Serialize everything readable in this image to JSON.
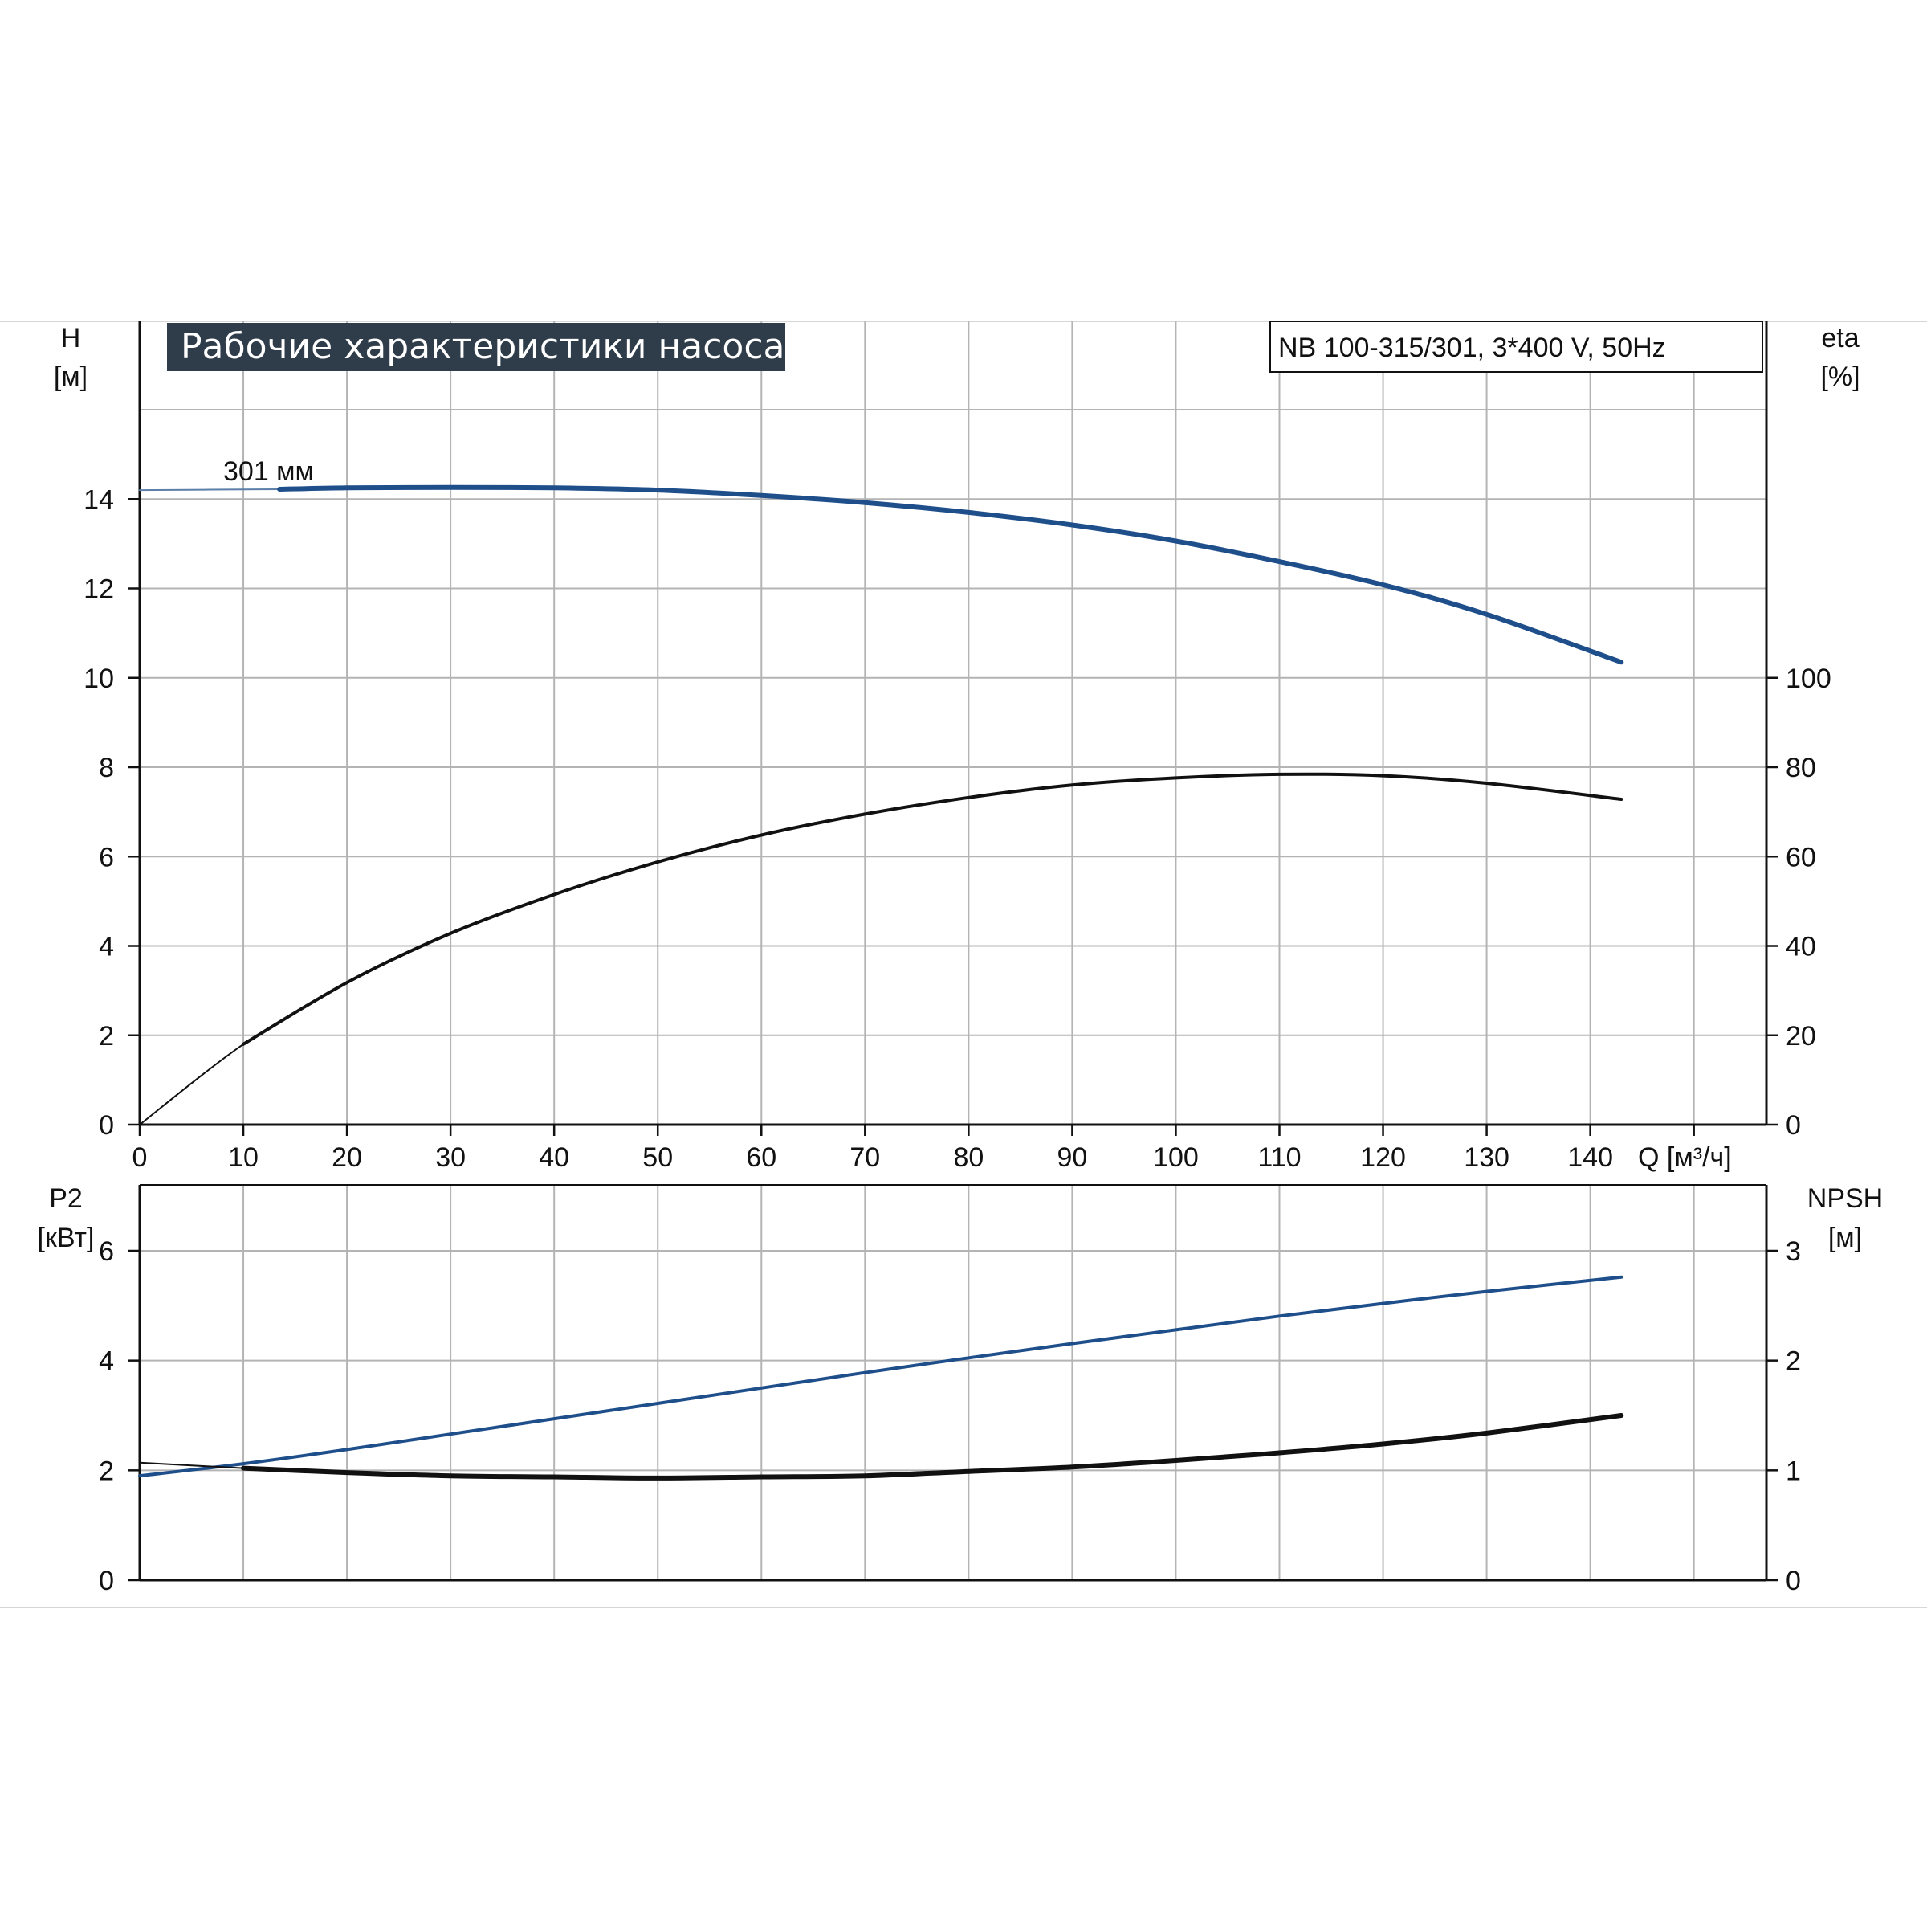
{
  "chart_data": [
    {
      "type": "line",
      "title": "Рабочие характеристики насоса",
      "model_label": "NB 100-315/301, 3*400 V, 50Hz",
      "curve_label": "301 мм",
      "xlabel": "Q [м³/ч]",
      "ylabel_left": [
        "H",
        "[м]"
      ],
      "ylabel_right": [
        "eta",
        "[%]"
      ],
      "xlim": [
        0,
        157
      ],
      "ylim_left": [
        0,
        16
      ],
      "ylim_right": [
        0,
        100
      ],
      "grid": true,
      "x_ticks": [
        "0",
        "10",
        "20",
        "30",
        "40",
        "50",
        "60",
        "70",
        "80",
        "90",
        "100",
        "110",
        "120",
        "130",
        "140"
      ],
      "y_ticks_left": [
        "0",
        "2",
        "4",
        "6",
        "8",
        "10",
        "12",
        "14"
      ],
      "y_ticks_right": [
        "0",
        "20",
        "40",
        "60",
        "80",
        "100"
      ],
      "series": [
        {
          "axis": "left",
          "color": "#1f4f8b",
          "x": [
            0,
            13.5,
            20,
            30,
            40,
            50,
            60,
            70,
            80,
            90,
            100,
            110,
            120,
            130,
            143
          ],
          "values": [
            14.2,
            14.22,
            14.25,
            14.26,
            14.25,
            14.2,
            14.08,
            13.92,
            13.7,
            13.42,
            13.06,
            12.6,
            12.08,
            11.42,
            10.35
          ]
        },
        {
          "axis": "right",
          "color": "#111111",
          "x": [
            0,
            10,
            20,
            30,
            40,
            50,
            60,
            70,
            80,
            90,
            100,
            110,
            120,
            130,
            143
          ],
          "values": [
            0,
            18,
            31.8,
            42.8,
            51.5,
            58.8,
            64.8,
            69.5,
            73.2,
            76,
            77.6,
            78.4,
            78.1,
            76.4,
            72.8
          ]
        }
      ]
    },
    {
      "type": "line",
      "xlim": [
        0,
        157
      ],
      "ylabel_left": [
        "P2",
        "[кВт]"
      ],
      "ylabel_right": [
        "NPSH",
        "[м]"
      ],
      "ylim_left": [
        0,
        7.2
      ],
      "ylim_right": [
        0,
        3.6
      ],
      "grid": true,
      "y_ticks_left": [
        "0",
        "2",
        "4",
        "6"
      ],
      "y_ticks_right": [
        "0",
        "1",
        "2",
        "3"
      ],
      "series": [
        {
          "axis": "left",
          "color": "#1f4f8b",
          "x": [
            0,
            10,
            20,
            30,
            40,
            50,
            60,
            70,
            80,
            90,
            100,
            110,
            120,
            130,
            143
          ],
          "values": [
            1.9,
            2.12,
            2.38,
            2.66,
            2.94,
            3.22,
            3.5,
            3.78,
            4.05,
            4.31,
            4.56,
            4.81,
            5.04,
            5.26,
            5.52
          ]
        },
        {
          "axis": "right",
          "color": "#111111",
          "x": [
            0,
            10,
            20,
            30,
            40,
            50,
            60,
            70,
            80,
            90,
            100,
            110,
            120,
            130,
            143
          ],
          "values": [
            1.07,
            1.02,
            0.98,
            0.95,
            0.94,
            0.93,
            0.94,
            0.95,
            0.99,
            1.03,
            1.09,
            1.16,
            1.24,
            1.34,
            1.5
          ]
        }
      ]
    }
  ]
}
